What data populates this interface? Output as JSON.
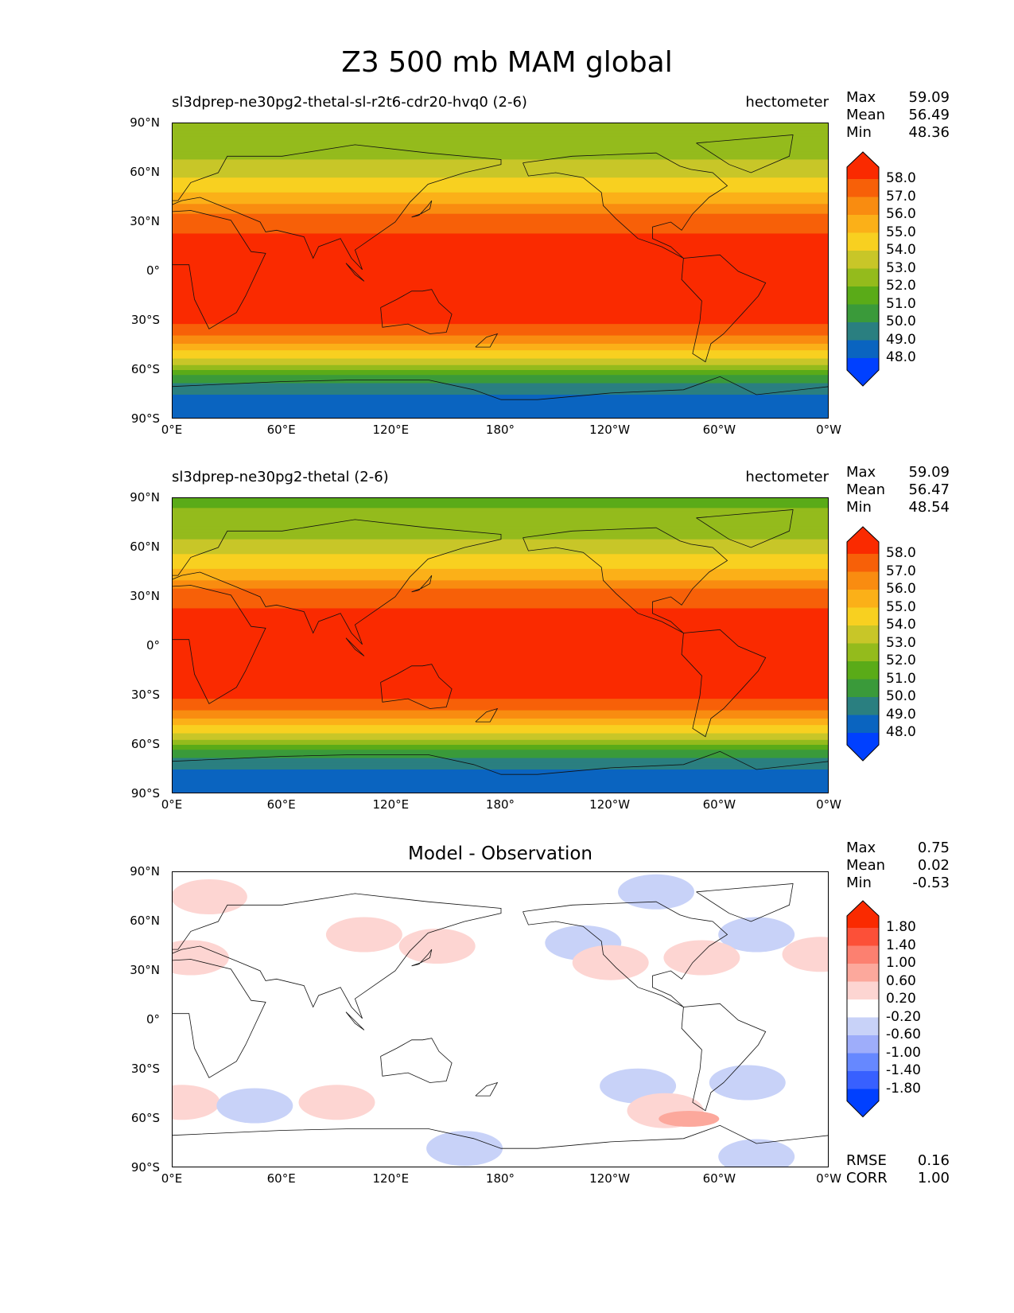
{
  "title": "Z3 500 mb MAM global",
  "xticks": [
    "0°E",
    "60°E",
    "120°E",
    "180°",
    "120°W",
    "60°W",
    "0°W"
  ],
  "yticks": [
    "90°N",
    "60°N",
    "30°N",
    "0°",
    "30°S",
    "60°S",
    "90°S"
  ],
  "panels": [
    {
      "left_title": "sl3dprep-ne30pg2-thetal-sl-r2t6-cdr20-hvq0 (2-6)",
      "right_title": "hectometer",
      "center_title": "",
      "stats": {
        "max_label": "Max",
        "max": "59.09",
        "mean_label": "Mean",
        "mean": "56.49",
        "min_label": "Min",
        "min": "48.36"
      },
      "colorbar_labels": [
        "58.0",
        "57.0",
        "56.0",
        "55.0",
        "54.0",
        "53.0",
        "52.0",
        "51.0",
        "50.0",
        "49.0",
        "48.0"
      ]
    },
    {
      "left_title": "sl3dprep-ne30pg2-thetal (2-6)",
      "right_title": "hectometer",
      "center_title": "",
      "stats": {
        "max_label": "Max",
        "max": "59.09",
        "mean_label": "Mean",
        "mean": "56.47",
        "min_label": "Min",
        "min": "48.54"
      },
      "colorbar_labels": [
        "58.0",
        "57.0",
        "56.0",
        "55.0",
        "54.0",
        "53.0",
        "52.0",
        "51.0",
        "50.0",
        "49.0",
        "48.0"
      ]
    },
    {
      "left_title": "",
      "right_title": "",
      "center_title": "Model - Observation",
      "stats": {
        "max_label": "Max",
        "max": "0.75",
        "mean_label": "Mean",
        "mean": "0.02",
        "min_label": "Min",
        "min": "-0.53"
      },
      "colorbar_labels": [
        "1.80",
        "1.40",
        "1.00",
        "0.60",
        "0.20",
        "-0.20",
        "-0.60",
        "-1.00",
        "-1.40",
        "-1.80"
      ],
      "rmse_label": "RMSE",
      "rmse": "0.16",
      "corr_label": "CORR",
      "corr": "1.00"
    }
  ],
  "colors": {
    "field": [
      "#0040ff",
      "#0a64c0",
      "#2a7f80",
      "#3a9a3a",
      "#5aab18",
      "#94bb1c",
      "#c8c628",
      "#f8d020",
      "#fbb018",
      "#f98c10",
      "#f76008",
      "#fa2a00"
    ],
    "diff": [
      "#0040ff",
      "#3860ff",
      "#6688ff",
      "#9eadfa",
      "#c8d2f8",
      "#ffffff",
      "#fdd5d2",
      "#fca89c",
      "#fc8070",
      "#fc5038",
      "#fa2a00"
    ]
  },
  "chart_data": [
    {
      "type": "heatmap",
      "title": "sl3dprep-ne30pg2-thetal-sl-r2t6-cdr20-hvq0 (2-6)",
      "units": "hectometer",
      "xlim": [
        0,
        360
      ],
      "ylim": [
        -90,
        90
      ],
      "levels": [
        48,
        49,
        50,
        51,
        52,
        53,
        54,
        55,
        56,
        57,
        58
      ],
      "zonal_mean_profile": {
        "lat": [
          90,
          75,
          65,
          55,
          45,
          38,
          30,
          0,
          -30,
          -38,
          -45,
          -55,
          -62,
          -68,
          -75,
          -90
        ],
        "value": [
          52.0,
          52.5,
          53.2,
          54.2,
          55.3,
          56.5,
          57.8,
          58.6,
          58.2,
          57.2,
          55.8,
          53.5,
          51.2,
          50.0,
          49.0,
          48.4
        ]
      },
      "max": 59.09,
      "mean": 56.49,
      "min": 48.36
    },
    {
      "type": "heatmap",
      "title": "sl3dprep-ne30pg2-thetal (2-6)",
      "units": "hectometer",
      "xlim": [
        0,
        360
      ],
      "ylim": [
        -90,
        90
      ],
      "levels": [
        48,
        49,
        50,
        51,
        52,
        53,
        54,
        55,
        56,
        57,
        58
      ],
      "zonal_mean_profile": {
        "lat": [
          90,
          75,
          65,
          55,
          45,
          38,
          30,
          0,
          -30,
          -38,
          -45,
          -55,
          -62,
          -68,
          -75,
          -90
        ],
        "value": [
          51.8,
          52.3,
          53.0,
          54.1,
          55.2,
          56.4,
          57.8,
          58.6,
          58.2,
          57.2,
          55.8,
          53.5,
          51.2,
          50.0,
          49.0,
          48.5
        ]
      },
      "max": 59.09,
      "mean": 56.47,
      "min": 48.54
    },
    {
      "type": "heatmap",
      "title": "Model - Observation",
      "xlim": [
        0,
        360
      ],
      "ylim": [
        -90,
        90
      ],
      "levels": [
        -1.8,
        -1.4,
        -1.0,
        -0.6,
        -0.2,
        0.2,
        0.6,
        1.0,
        1.4,
        1.8
      ],
      "anomalies": [
        {
          "lon": 20,
          "lat": 75,
          "value": 0.3
        },
        {
          "lon": 10,
          "lat": 38,
          "value": 0.3
        },
        {
          "lon": 5,
          "lat": -50,
          "value": 0.3
        },
        {
          "lon": 45,
          "lat": -52,
          "value": -0.3
        },
        {
          "lon": 105,
          "lat": 52,
          "value": 0.3
        },
        {
          "lon": 145,
          "lat": 45,
          "value": 0.3
        },
        {
          "lon": 90,
          "lat": -50,
          "value": 0.3
        },
        {
          "lon": 160,
          "lat": -78,
          "value": -0.3
        },
        {
          "lon": 225,
          "lat": 47,
          "value": -0.3
        },
        {
          "lon": 240,
          "lat": 35,
          "value": 0.3
        },
        {
          "lon": 265,
          "lat": 78,
          "value": -0.3
        },
        {
          "lon": 320,
          "lat": 52,
          "value": -0.3
        },
        {
          "lon": 290,
          "lat": 38,
          "value": 0.3
        },
        {
          "lon": 355,
          "lat": 40,
          "value": 0.3
        },
        {
          "lon": 255,
          "lat": -40,
          "value": -0.3
        },
        {
          "lon": 315,
          "lat": -38,
          "value": -0.3
        },
        {
          "lon": 270,
          "lat": -55,
          "value": 0.3
        },
        {
          "lon": 283,
          "lat": -60,
          "value": 0.75
        },
        {
          "lon": 320,
          "lat": -83,
          "value": -0.3
        }
      ],
      "max": 0.75,
      "mean": 0.02,
      "min": -0.53,
      "rmse": 0.16,
      "corr": 1.0
    }
  ]
}
